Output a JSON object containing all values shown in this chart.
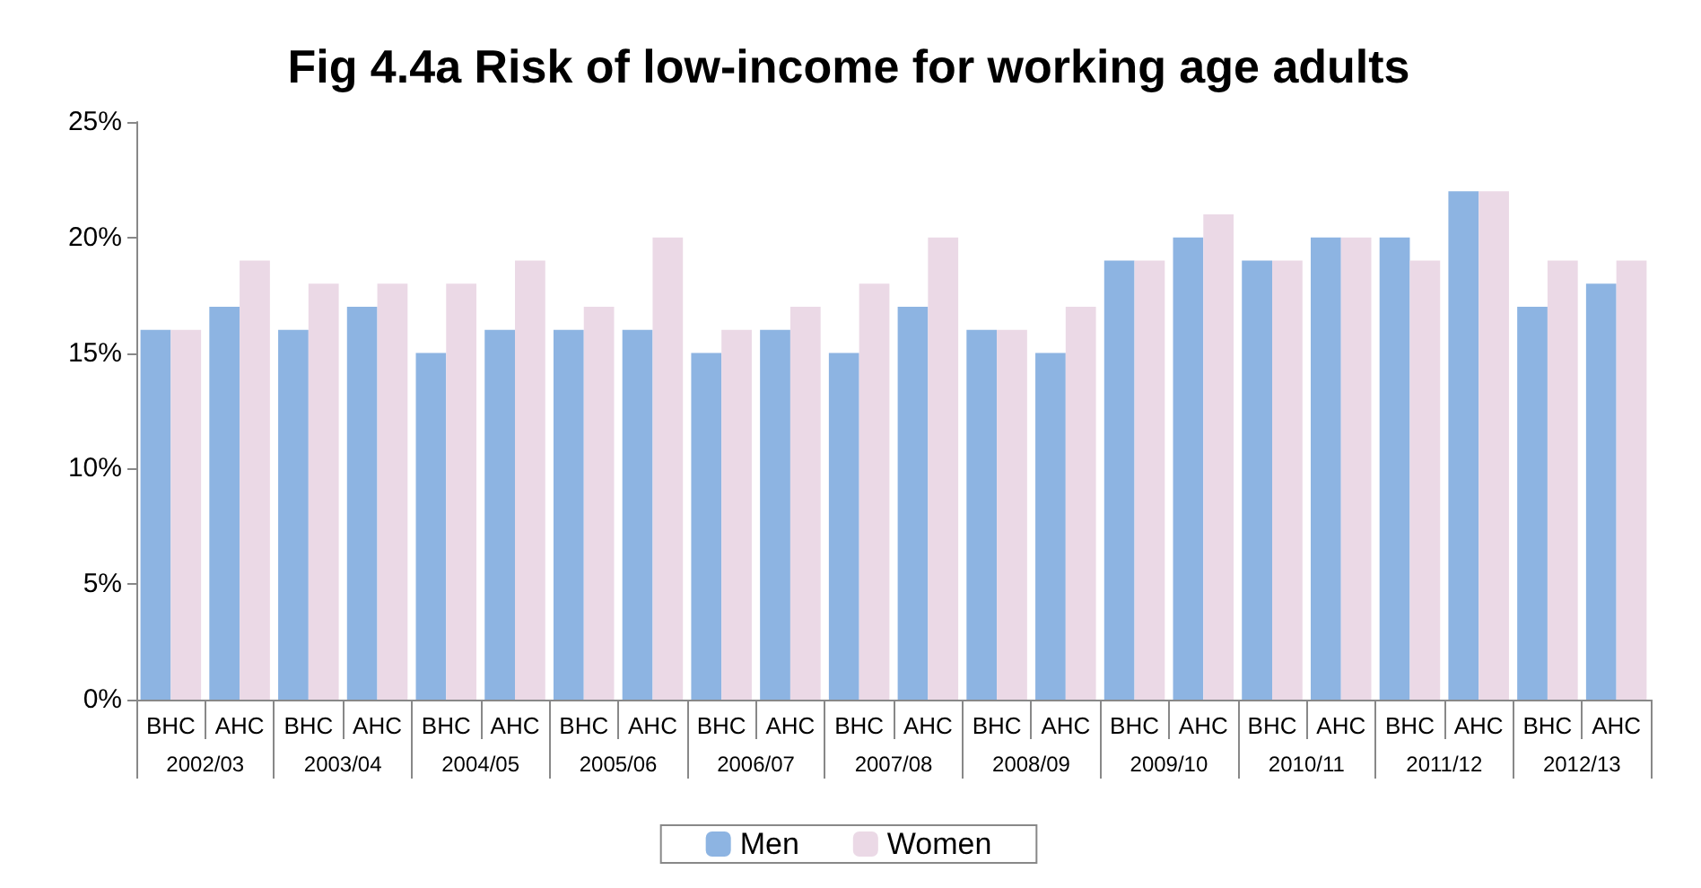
{
  "chart_data": {
    "type": "bar",
    "title": "Fig 4.4a Risk of low-income for working age adults",
    "categories": [
      "BHC",
      "AHC",
      "BHC",
      "AHC",
      "BHC",
      "AHC",
      "BHC",
      "AHC",
      "BHC",
      "AHC",
      "BHC",
      "AHC",
      "BHC",
      "AHC",
      "BHC",
      "AHC",
      "BHC",
      "AHC",
      "BHC",
      "AHC",
      "BHC",
      "AHC"
    ],
    "annotations": [
      "2002/03",
      "2003/04",
      "2004/05",
      "2005/06",
      "2006/07",
      "2007/08",
      "2008/09",
      "2009/10",
      "2010/11",
      "2011/12",
      "2012/13"
    ],
    "series": [
      {
        "name": "Men",
        "color": "#8db4e2",
        "values": [
          16,
          17,
          16,
          17,
          15,
          16,
          16,
          16,
          15,
          16,
          15,
          17,
          16,
          15,
          19,
          20,
          19,
          20,
          20,
          22,
          17,
          18
        ]
      },
      {
        "name": "Women",
        "color": "#ebd9e6",
        "values": [
          16,
          19,
          18,
          18,
          18,
          19,
          17,
          20,
          16,
          17,
          18,
          20,
          16,
          17,
          19,
          21,
          19,
          20,
          19,
          22,
          19,
          19
        ]
      }
    ],
    "ylim": [
      0,
      25
    ],
    "yticks": [
      {
        "value": 0,
        "label": "0%"
      },
      {
        "value": 5,
        "label": "5%"
      },
      {
        "value": 10,
        "label": "10%"
      },
      {
        "value": 15,
        "label": "15%"
      },
      {
        "value": 20,
        "label": "20%"
      },
      {
        "value": 25,
        "label": "25%"
      }
    ],
    "grid": false,
    "legend": "bottom"
  }
}
